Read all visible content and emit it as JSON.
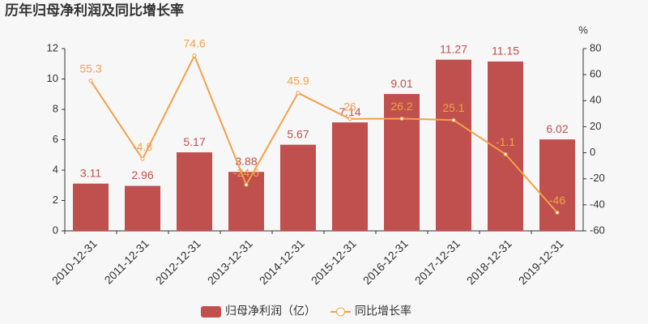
{
  "chart_data": {
    "type": "bar-line",
    "title": "历年归母净利润及同比增长率",
    "categories": [
      "2010-12-31",
      "2011-12-31",
      "2012-12-31",
      "2013-12-31",
      "2014-12-31",
      "2015-12-31",
      "2016-12-31",
      "2017-12-31",
      "2018-12-31",
      "2019-12-31"
    ],
    "series": [
      {
        "name": "归母净利润（亿）",
        "type": "bar",
        "color": "#c0504d",
        "values": [
          3.11,
          2.96,
          5.17,
          3.88,
          5.67,
          7.14,
          9.01,
          11.27,
          11.15,
          6.02
        ]
      },
      {
        "name": "同比增长率",
        "type": "line",
        "axis": "y2",
        "color": "#f3a04a",
        "values": [
          55.3,
          -4.8,
          74.6,
          -24.6,
          45.9,
          26,
          26.2,
          25.1,
          -1.1,
          -46
        ]
      }
    ],
    "ylim": [
      0,
      12
    ],
    "yticks": [
      0,
      2,
      4,
      6,
      8,
      10,
      12
    ],
    "y2lim": [
      -60,
      80
    ],
    "y2ticks": [
      -60,
      -40,
      -20,
      0,
      20,
      40,
      60,
      80
    ],
    "y2_unit": "%"
  }
}
